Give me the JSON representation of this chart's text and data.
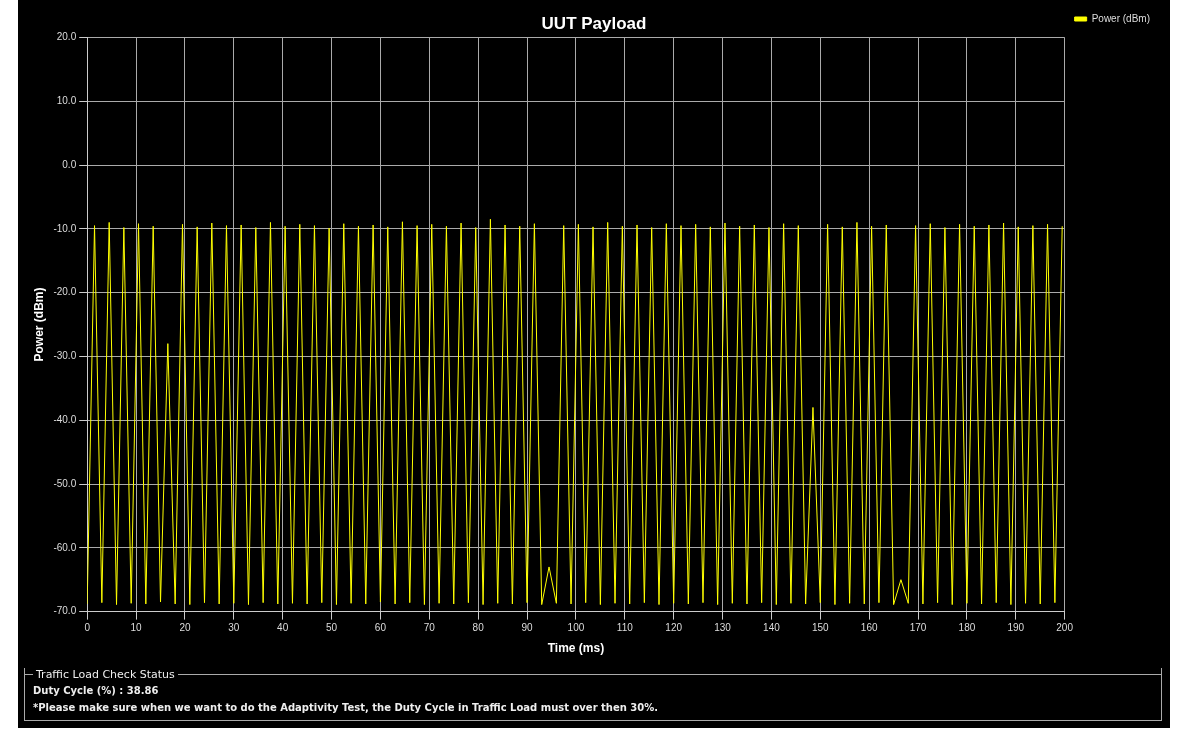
{
  "chart_data": {
    "type": "line",
    "title": "UUT Payload",
    "xlabel": "Time (ms)",
    "ylabel": "Power (dBm)",
    "x": [
      0,
      1.5,
      3,
      4.5,
      6,
      7.5,
      9,
      10.5,
      12,
      13.5,
      15,
      16.5,
      18,
      19.5,
      21,
      22.5,
      24,
      25.5,
      27,
      28.5,
      30,
      31.5,
      33,
      34.5,
      36,
      37.5,
      39,
      40.5,
      42,
      43.5,
      45,
      46.5,
      48,
      49.5,
      51,
      52.5,
      54,
      55.5,
      57,
      58.5,
      60,
      61.5,
      63,
      64.5,
      66,
      67.5,
      69,
      70.5,
      72,
      73.5,
      75,
      76.5,
      78,
      79.5,
      81,
      82.5,
      84,
      85.5,
      87,
      88.5,
      90,
      91.5,
      93,
      94.5,
      96,
      97.5,
      99,
      100.5,
      102,
      103.5,
      105,
      106.5,
      108,
      109.5,
      111,
      112.5,
      114,
      115.5,
      117,
      118.5,
      120,
      121.5,
      123,
      124.5,
      126,
      127.5,
      129,
      130.5,
      132,
      133.5,
      135,
      136.5,
      138,
      139.5,
      141,
      142.5,
      144,
      145.5,
      147,
      148.5,
      150,
      151.5,
      153,
      154.5,
      156,
      157.5,
      159,
      160.5,
      162,
      163.5,
      165,
      166.5,
      168,
      169.5,
      171,
      172.5,
      174,
      175.5,
      177,
      178.5,
      180,
      181.5,
      183,
      184.5,
      186,
      187.5,
      189,
      190.5,
      192,
      193.5,
      195,
      196.5,
      198,
      199.5
    ],
    "series": [
      {
        "name": "Power (dBm)",
        "color": "#ffff00",
        "values": [
          -68.8,
          -9.5,
          -68.6,
          -9.0,
          -68.9,
          -9.8,
          -68.7,
          -9.2,
          -68.8,
          -9.6,
          -68.5,
          -28.0,
          -68.8,
          -9.3,
          -68.9,
          -9.7,
          -68.6,
          -9.1,
          -68.8,
          -9.5,
          -68.7,
          -9.4,
          -68.9,
          -9.8,
          -68.6,
          -9.0,
          -68.8,
          -9.6,
          -68.7,
          -9.3,
          -68.8,
          -9.5,
          -68.6,
          -9.9,
          -68.9,
          -9.2,
          -68.7,
          -9.6,
          -68.8,
          -9.4,
          -68.5,
          -9.7,
          -68.8,
          -8.9,
          -68.6,
          -9.5,
          -68.9,
          -9.3,
          -68.7,
          -9.6,
          -68.8,
          -9.1,
          -68.6,
          -9.8,
          -68.9,
          -8.5,
          -68.7,
          -9.4,
          -68.8,
          -9.6,
          -68.6,
          -9.2,
          -68.9,
          -63.0,
          -68.7,
          -9.5,
          -68.8,
          -9.3,
          -68.6,
          -9.7,
          -68.9,
          -9.0,
          -68.7,
          -9.6,
          -68.8,
          -9.4,
          -68.6,
          -9.8,
          -68.9,
          -9.2,
          -68.7,
          -9.5,
          -68.8,
          -9.3,
          -68.6,
          -9.7,
          -68.9,
          -9.1,
          -68.7,
          -9.6,
          -68.8,
          -9.4,
          -68.6,
          -9.8,
          -68.9,
          -9.2,
          -68.7,
          -9.5,
          -68.8,
          -38.0,
          -68.6,
          -9.3,
          -68.9,
          -9.7,
          -68.7,
          -9.0,
          -68.8,
          -9.6,
          -68.6,
          -9.4,
          -68.9,
          -65.0,
          -68.7,
          -9.5,
          -68.8,
          -9.2,
          -68.6,
          -9.8,
          -68.9,
          -9.3,
          -68.7,
          -9.6,
          -68.8,
          -9.4,
          -68.6,
          -9.1,
          -68.9,
          -9.7,
          -68.7,
          -9.5,
          -68.8,
          -9.3,
          -68.6,
          -9.6
        ]
      }
    ],
    "xlim": [
      0,
      200
    ],
    "xticks": [
      0,
      10,
      20,
      30,
      40,
      50,
      60,
      70,
      80,
      90,
      100,
      110,
      120,
      130,
      140,
      150,
      160,
      170,
      180,
      190,
      200
    ],
    "ylim": [
      -70,
      20
    ],
    "yticks": [
      {
        "value": -70,
        "label": "-70.0"
      },
      {
        "value": -60,
        "label": "-60.0"
      },
      {
        "value": -50,
        "label": "-50.0"
      },
      {
        "value": -40,
        "label": "-40.0"
      },
      {
        "value": -30,
        "label": "-30.0"
      },
      {
        "value": -20,
        "label": "-20.0"
      },
      {
        "value": -10,
        "label": "-10.0"
      },
      {
        "value": 0,
        "label": "0.0"
      },
      {
        "value": 10,
        "label": "10.0"
      },
      {
        "value": 20,
        "label": "20.0"
      }
    ],
    "grid": true,
    "legend": "top right",
    "marker": "none",
    "line_style": "solid",
    "annotations": [
      "Traffic Load Check Status",
      "Duty Cycle (%) : 38.86",
      "*Please make sure when we want to do the Adaptivity Test, the Duty Cycle in Traffic Load must over then 30%."
    ]
  }
}
